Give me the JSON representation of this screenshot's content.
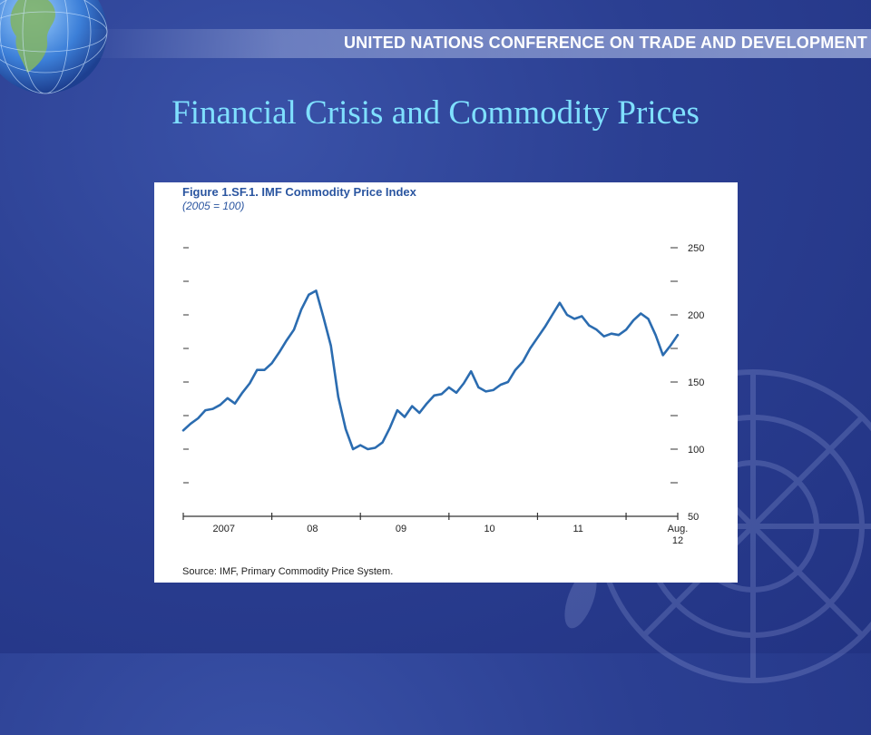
{
  "banner": {
    "text": "UNITED NATIONS CONFERENCE ON TRADE AND DEVELOPMENT"
  },
  "slide": {
    "title": "Financial Crisis and Commodity Prices"
  },
  "colors": {
    "background": "#2b3f92",
    "title": "#7fe0ff",
    "line": "#2b6cb0",
    "figure_title": "#2a55a0"
  },
  "icons": {
    "globe": "globe-icon",
    "emblem": "un-emblem-icon"
  },
  "chart_data": {
    "type": "line",
    "title": "Figure 1.SF.1.  IMF Commodity Price Index",
    "subtitle": "(2005 = 100)",
    "source": "Source: IMF, Primary Commodity Price System.",
    "ylim": [
      50,
      250
    ],
    "y_ticks": [
      "250",
      "200",
      "150",
      "100",
      "50"
    ],
    "x_tick_labels": [
      "2007",
      "08",
      "09",
      "10",
      "11",
      "Aug.",
      "12"
    ],
    "grid": false,
    "series": [
      {
        "x": [
          0,
          1,
          2,
          3,
          4,
          5,
          6,
          7,
          8,
          9,
          10,
          11,
          12,
          13,
          14,
          15,
          16,
          17,
          18,
          19,
          20,
          21,
          22,
          23,
          24,
          25,
          26,
          27,
          28,
          29,
          30,
          31,
          32,
          33,
          34,
          35,
          36,
          37,
          38,
          39,
          40,
          41,
          42,
          43,
          44,
          45,
          46,
          47,
          48,
          49,
          50,
          51,
          52,
          53,
          54,
          55,
          56,
          57,
          58,
          59,
          60,
          61,
          62,
          63,
          64,
          65,
          66,
          67
        ],
        "values": [
          114,
          119,
          123,
          129,
          130,
          133,
          138,
          134,
          142,
          149,
          159,
          159,
          164,
          172,
          181,
          189,
          204,
          215,
          218,
          198,
          177,
          139,
          115,
          100,
          103,
          100,
          101,
          105,
          116,
          129,
          124,
          132,
          127,
          134,
          140,
          141,
          146,
          142,
          149,
          158,
          146,
          143,
          144,
          148,
          150,
          159,
          165,
          175,
          183,
          191,
          200,
          209,
          200,
          197,
          199,
          192,
          189,
          184,
          186,
          185,
          189,
          196,
          201,
          197,
          185,
          170,
          177,
          185
        ]
      }
    ]
  }
}
